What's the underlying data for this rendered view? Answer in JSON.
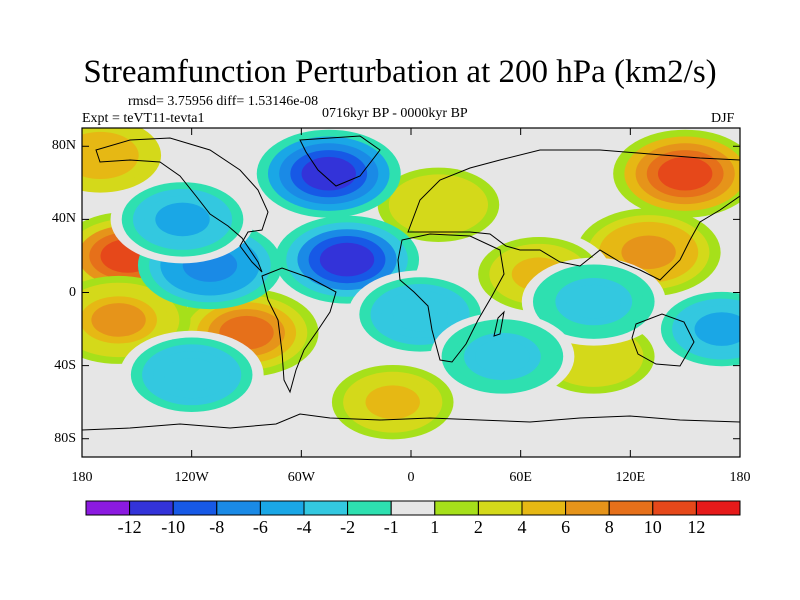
{
  "title": "Streamfunction Perturbation at 200 hPa (km2/s)",
  "stats_text": "rmsd= 3.75956 diff= 1.53146e-08",
  "experiment_text": "Expt = teVT11-tevta1",
  "period_text": "0716kyr BP - 0000kyr BP",
  "season_text": "DJF",
  "map": {
    "projection": "cylindrical equidistant",
    "lon_range": [
      -180,
      180
    ],
    "lat_range": [
      -90,
      90
    ],
    "lat_ticks": [
      {
        "value": 80,
        "label": "80N"
      },
      {
        "value": 40,
        "label": "40N"
      },
      {
        "value": 0,
        "label": "0"
      },
      {
        "value": -40,
        "label": "40S"
      },
      {
        "value": -80,
        "label": "80S"
      }
    ],
    "lon_ticks": [
      {
        "value": -180,
        "label": "180"
      },
      {
        "value": -120,
        "label": "120W"
      },
      {
        "value": -60,
        "label": "60W"
      },
      {
        "value": 0,
        "label": "0"
      },
      {
        "value": 60,
        "label": "60E"
      },
      {
        "value": 120,
        "label": "120E"
      },
      {
        "value": 180,
        "label": "180"
      }
    ],
    "anomaly_centers": [
      {
        "lon": 150,
        "lat": 65,
        "value": 12
      },
      {
        "lon": -155,
        "lat": 20,
        "value": 11
      },
      {
        "lon": -90,
        "lat": -22,
        "value": 10
      },
      {
        "lon": 130,
        "lat": 22,
        "value": 8
      },
      {
        "lon": -160,
        "lat": -15,
        "value": 7
      },
      {
        "lon": 70,
        "lat": 10,
        "value": 5
      },
      {
        "lon": 15,
        "lat": 48,
        "value": 4
      },
      {
        "lon": -10,
        "lat": -60,
        "value": 5
      },
      {
        "lon": 100,
        "lat": -35,
        "value": 4
      },
      {
        "lon": -170,
        "lat": 75,
        "value": 6
      },
      {
        "lon": -45,
        "lat": 65,
        "value": -12
      },
      {
        "lon": -35,
        "lat": 18,
        "value": -11
      },
      {
        "lon": -110,
        "lat": 15,
        "value": -8
      },
      {
        "lon": -125,
        "lat": 40,
        "value": -5
      },
      {
        "lon": 5,
        "lat": -12,
        "value": -4
      },
      {
        "lon": 170,
        "lat": -20,
        "value": -5
      },
      {
        "lon": 100,
        "lat": -5,
        "value": -3
      },
      {
        "lon": -120,
        "lat": -45,
        "value": -4
      },
      {
        "lon": 50,
        "lat": -35,
        "value": -3
      }
    ]
  },
  "colorbar": {
    "colors": [
      "#8b1ae0",
      "#3333d9",
      "#1759e6",
      "#1a8ae6",
      "#1aa7e6",
      "#33c8e0",
      "#2ee0b0",
      "#e6e6e6",
      "#a6e01a",
      "#d4d91a",
      "#e6b814",
      "#e6941a",
      "#e6701a",
      "#e6481a",
      "#e61a1a"
    ],
    "labels": [
      "-12",
      "-10",
      "-8",
      "-6",
      "-4",
      "-2",
      "-1",
      "1",
      "2",
      "4",
      "6",
      "8",
      "10",
      "12"
    ]
  }
}
